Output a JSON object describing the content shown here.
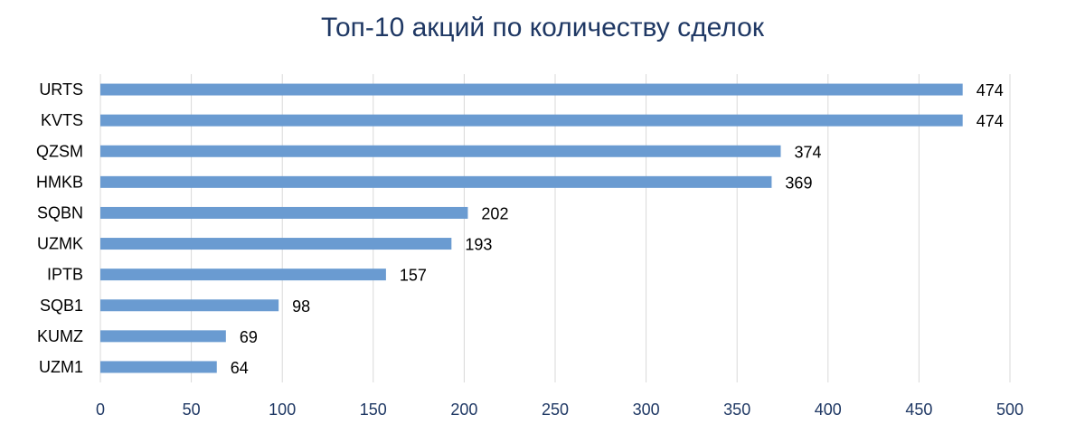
{
  "chart_data": {
    "type": "bar",
    "orientation": "horizontal",
    "title": "Топ-10 акций по количеству сделок",
    "categories": [
      "URTS",
      "KVTS",
      "QZSM",
      "HMKB",
      "SQBN",
      "UZMK",
      "IPTB",
      "SQB1",
      "KUMZ",
      "UZM1"
    ],
    "values": [
      474,
      474,
      374,
      369,
      202,
      193,
      157,
      98,
      69,
      64
    ],
    "xlim": [
      0,
      500
    ],
    "xticks": [
      0,
      50,
      100,
      150,
      200,
      250,
      300,
      350,
      400,
      450,
      500
    ],
    "grid": true,
    "data_labels": true,
    "legend": "none",
    "colors": {
      "bar": "#6a9bd1",
      "title": "#1f3864",
      "grid": "#d9d9d9"
    }
  }
}
